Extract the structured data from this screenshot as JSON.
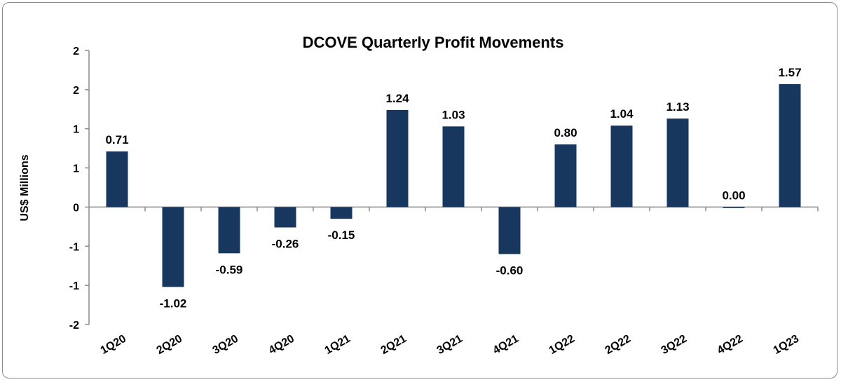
{
  "chart_data": {
    "type": "bar",
    "title": "DCOVE Quarterly Profit Movements",
    "ylabel": "US$ Millions",
    "xlabel": "",
    "categories": [
      "1Q20",
      "2Q20",
      "3Q20",
      "4Q20",
      "1Q21",
      "2Q21",
      "3Q21",
      "4Q21",
      "1Q22",
      "2Q22",
      "3Q22",
      "4Q22",
      "1Q23"
    ],
    "values": [
      0.71,
      -1.02,
      -0.59,
      -0.26,
      -0.15,
      1.24,
      1.03,
      -0.6,
      0.8,
      1.04,
      1.13,
      0.0,
      1.57
    ],
    "data_labels": [
      "0.71",
      "-1.02",
      "-0.59",
      "-0.26",
      "-0.15",
      "1.24",
      "1.03",
      "-0.60",
      "0.80",
      "1.04",
      "1.13",
      "0.00",
      "1.57"
    ],
    "ylim": [
      -1.5,
      2.0
    ],
    "yticks": [
      2.0,
      1.5,
      1.0,
      0.5,
      0.0,
      -0.5,
      -1.0,
      -1.5
    ],
    "ytick_labels": [
      "2",
      "2",
      "1",
      "1",
      "0",
      "-1",
      "-1",
      "-2"
    ],
    "grid": false,
    "legend": "none",
    "bar_color": "#17375e"
  }
}
